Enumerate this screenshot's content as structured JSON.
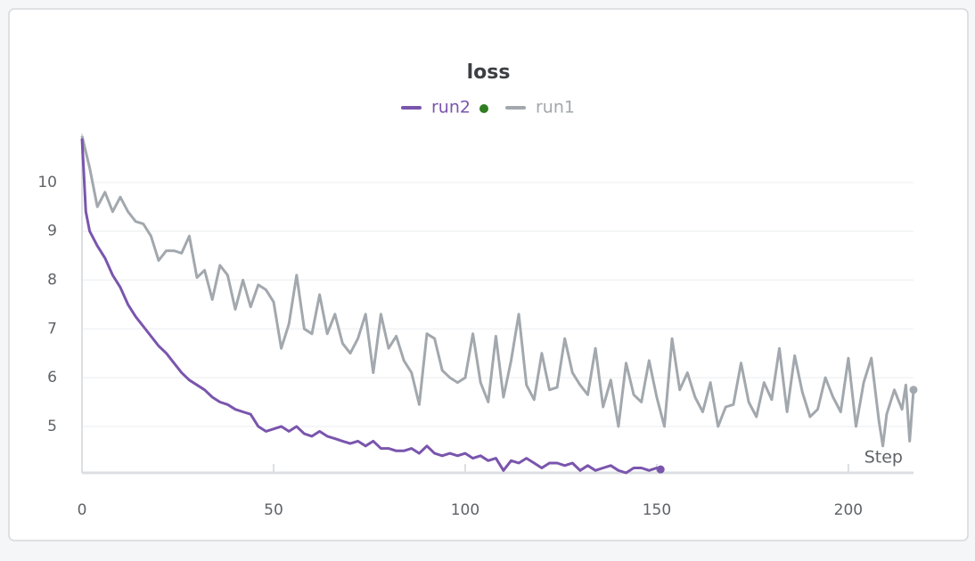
{
  "chart_data": {
    "type": "line",
    "title": "loss",
    "xlabel": "Step",
    "xlim": [
      0,
      217
    ],
    "ylim": [
      4.05,
      11
    ],
    "xticks": [
      0,
      50,
      100,
      150,
      200
    ],
    "yticks": [
      5,
      6,
      7,
      8,
      9,
      10
    ],
    "grid": true,
    "legend": "top",
    "series": [
      {
        "name": "run2",
        "color": "#7a55ad",
        "x": [
          0,
          1,
          2,
          4,
          6,
          8,
          10,
          12,
          14,
          16,
          18,
          20,
          22,
          24,
          26,
          28,
          30,
          32,
          34,
          36,
          38,
          40,
          42,
          44,
          46,
          48,
          50,
          52,
          54,
          56,
          58,
          60,
          62,
          64,
          66,
          68,
          70,
          72,
          74,
          76,
          78,
          80,
          82,
          84,
          86,
          88,
          90,
          92,
          94,
          96,
          98,
          100,
          102,
          104,
          106,
          108,
          110,
          112,
          114,
          116,
          118,
          120,
          122,
          124,
          126,
          128,
          130,
          132,
          134,
          136,
          138,
          140,
          142,
          144,
          146,
          148,
          150,
          151
        ],
        "values": [
          10.9,
          9.4,
          9.0,
          8.7,
          8.45,
          8.1,
          7.85,
          7.5,
          7.25,
          7.05,
          6.85,
          6.65,
          6.5,
          6.3,
          6.1,
          5.95,
          5.85,
          5.75,
          5.6,
          5.5,
          5.45,
          5.35,
          5.3,
          5.25,
          5.0,
          4.9,
          4.95,
          5.0,
          4.9,
          5.0,
          4.85,
          4.8,
          4.9,
          4.8,
          4.75,
          4.7,
          4.65,
          4.7,
          4.6,
          4.7,
          4.55,
          4.55,
          4.5,
          4.5,
          4.55,
          4.45,
          4.6,
          4.45,
          4.4,
          4.45,
          4.4,
          4.45,
          4.35,
          4.4,
          4.3,
          4.35,
          4.1,
          4.3,
          4.25,
          4.35,
          4.25,
          4.15,
          4.25,
          4.25,
          4.2,
          4.25,
          4.1,
          4.2,
          4.1,
          4.15,
          4.2,
          4.1,
          4.05,
          4.15,
          4.15,
          4.1,
          4.15,
          4.12
        ]
      },
      {
        "name": "run1",
        "color": "#a2a8ad",
        "x": [
          0,
          2,
          4,
          6,
          8,
          10,
          12,
          14,
          16,
          18,
          20,
          22,
          24,
          26,
          28,
          30,
          32,
          34,
          36,
          38,
          40,
          42,
          44,
          46,
          48,
          50,
          52,
          54,
          56,
          58,
          60,
          62,
          64,
          66,
          68,
          70,
          72,
          74,
          76,
          78,
          80,
          82,
          84,
          86,
          88,
          90,
          92,
          94,
          96,
          98,
          100,
          102,
          104,
          106,
          108,
          110,
          112,
          114,
          116,
          118,
          120,
          122,
          124,
          126,
          128,
          130,
          132,
          134,
          136,
          138,
          140,
          142,
          144,
          146,
          148,
          150,
          152,
          154,
          156,
          158,
          160,
          162,
          164,
          166,
          168,
          170,
          172,
          174,
          176,
          178,
          180,
          182,
          184,
          186,
          188,
          190,
          192,
          194,
          196,
          198,
          200,
          202,
          204,
          206,
          208,
          209,
          210,
          212,
          214,
          215,
          216,
          217
        ],
        "values": [
          10.95,
          10.3,
          9.5,
          9.8,
          9.4,
          9.7,
          9.4,
          9.2,
          9.15,
          8.9,
          8.4,
          8.6,
          8.6,
          8.55,
          8.9,
          8.05,
          8.2,
          7.6,
          8.3,
          8.1,
          7.4,
          8.0,
          7.45,
          7.9,
          7.8,
          7.55,
          6.6,
          7.1,
          8.1,
          7.0,
          6.9,
          7.7,
          6.9,
          7.3,
          6.7,
          6.5,
          6.8,
          7.3,
          6.1,
          7.3,
          6.6,
          6.85,
          6.35,
          6.1,
          5.45,
          6.9,
          6.8,
          6.15,
          6.0,
          5.9,
          6.0,
          6.9,
          5.9,
          5.5,
          6.85,
          5.6,
          6.35,
          7.3,
          5.85,
          5.55,
          6.5,
          5.75,
          5.8,
          6.8,
          6.1,
          5.85,
          5.65,
          6.6,
          5.4,
          5.95,
          5.0,
          6.3,
          5.65,
          5.5,
          6.35,
          5.6,
          5.0,
          6.8,
          5.75,
          6.1,
          5.6,
          5.3,
          5.9,
          5.0,
          5.4,
          5.45,
          6.3,
          5.5,
          5.2,
          5.9,
          5.55,
          6.6,
          5.3,
          6.45,
          5.7,
          5.2,
          5.35,
          6.0,
          5.6,
          5.3,
          6.4,
          5.0,
          5.9,
          6.4,
          5.1,
          4.6,
          5.25,
          5.75,
          5.35,
          5.85,
          4.7,
          5.75
        ]
      }
    ]
  }
}
